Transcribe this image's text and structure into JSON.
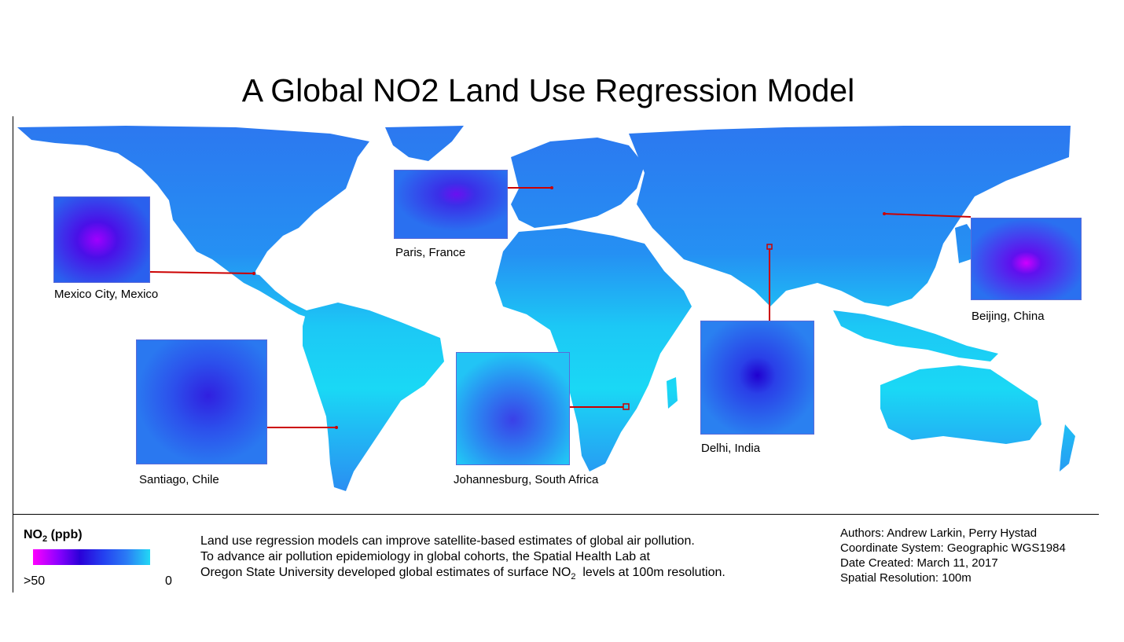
{
  "title": "A Global NO2 Land Use Regression Model",
  "insets": {
    "paris": {
      "caption": "Paris, France"
    },
    "mexico": {
      "caption": "Mexico City, Mexico"
    },
    "beijing": {
      "caption": "Beijing, China"
    },
    "santiago": {
      "caption": "Santiago, Chile"
    },
    "johannesburg": {
      "caption": "Johannesburg, South Africa"
    },
    "delhi": {
      "caption": "Delhi, India"
    }
  },
  "legend": {
    "title": "NO",
    "title_sub": "2",
    "title_unit": " (ppb)",
    "high_label": ">50",
    "low_label": "0",
    "gradient_colors": [
      "#ff00ff",
      "#8a00ff",
      "#2a00d8",
      "#2440f0",
      "#2a7cf5",
      "#22d8f5"
    ]
  },
  "description": {
    "line1": "Land use regression models can improve satellite-based estimates of global air pollution.",
    "line2": "To advance air pollution epidemiology in global cohorts, the Spatial Health Lab at",
    "line3_a": "Oregon State University developed global estimates of surface NO",
    "line3_sub": "2",
    "line3_b": "  levels at 100m resolution."
  },
  "metadata": {
    "authors": "Authors: Andrew Larkin, Perry Hystad",
    "coordinate_system": "Coordinate System: Geographic WGS1984",
    "date_created": "Date Created: March 11, 2017",
    "spatial_resolution": "Spatial Resolution: 100m"
  },
  "colors": {
    "ocean": "#ffffff",
    "land_high_lat": "#2f7ff2",
    "land_mid": "#1fb0f5",
    "land_tropics": "#1ad8f5",
    "leader_line": "#cc0000"
  }
}
